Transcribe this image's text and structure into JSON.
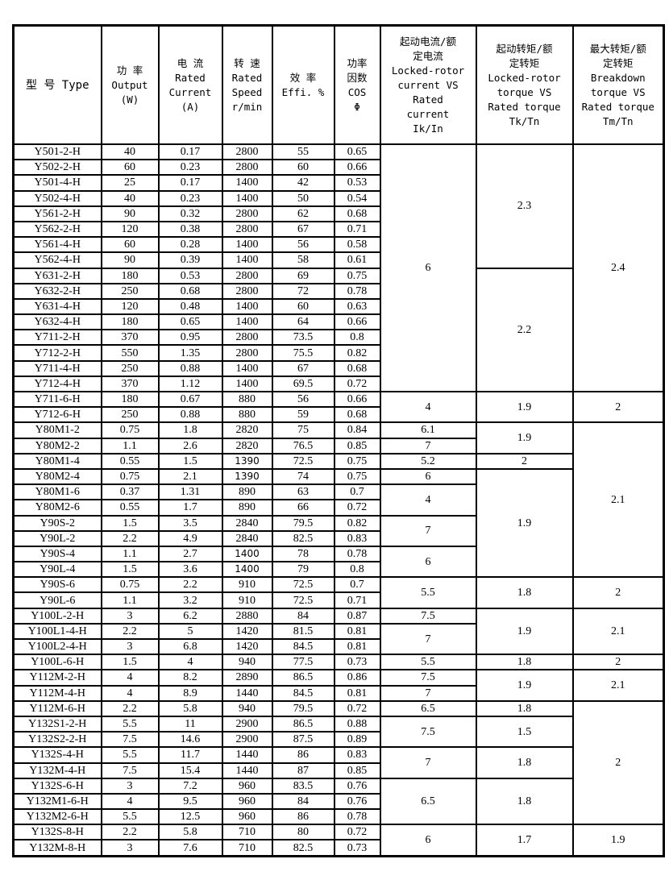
{
  "page": {
    "background_color": "#ffffff",
    "border_color": "#000000"
  },
  "table": {
    "columns": [
      {
        "id": "type",
        "label": "型 号 Type"
      },
      {
        "id": "output",
        "label": "功 率\nOutput\n(W)"
      },
      {
        "id": "current",
        "label": "电 流\nRated\nCurrent\n(A)"
      },
      {
        "id": "speed",
        "label": "转 速\nRated\nSpeed\nr/min"
      },
      {
        "id": "efficiency",
        "label": "效 率\nEffi. %"
      },
      {
        "id": "cos",
        "label": "功率\n因数\nCOS\nΦ"
      },
      {
        "id": "ik_in",
        "label": "起动电流/额\n定电流\nLocked-rotor\ncurrent VS\nRated\ncurrent\nIk/In"
      },
      {
        "id": "tk_tn",
        "label": "起动转矩/额\n定转矩\nLocked-rotor\ntorque VS\nRated torque\nTk/Tn"
      },
      {
        "id": "tm_tn",
        "label": "最大转矩/额\n定转矩\nBreakdown\ntorque VS\nRated torque\nTm/Tn"
      }
    ],
    "rows": [
      {
        "type": "Y501-2-H",
        "output": "40",
        "current": "0.17",
        "speed": "2800",
        "speed_alt_font": false,
        "efficiency": "55",
        "cos": "0.65"
      },
      {
        "type": "Y502-2-H",
        "output": "60",
        "current": "0.23",
        "speed": "2800",
        "speed_alt_font": false,
        "efficiency": "60",
        "cos": "0.66"
      },
      {
        "type": "Y501-4-H",
        "output": "25",
        "current": "0.17",
        "speed": "1400",
        "speed_alt_font": false,
        "efficiency": "42",
        "cos": "0.53"
      },
      {
        "type": "Y502-4-H",
        "output": "40",
        "current": "0.23",
        "speed": "1400",
        "speed_alt_font": false,
        "efficiency": "50",
        "cos": "0.54"
      },
      {
        "type": "Y561-2-H",
        "output": "90",
        "current": "0.32",
        "speed": "2800",
        "speed_alt_font": false,
        "efficiency": "62",
        "cos": "0.68"
      },
      {
        "type": "Y562-2-H",
        "output": "120",
        "current": "0.38",
        "speed": "2800",
        "speed_alt_font": false,
        "efficiency": "67",
        "cos": "0.71"
      },
      {
        "type": "Y561-4-H",
        "output": "60",
        "current": "0.28",
        "speed": "1400",
        "speed_alt_font": false,
        "efficiency": "56",
        "cos": "0.58"
      },
      {
        "type": "Y562-4-H",
        "output": "90",
        "current": "0.39",
        "speed": "1400",
        "speed_alt_font": false,
        "efficiency": "58",
        "cos": "0.61"
      },
      {
        "type": "Y631-2-H",
        "output": "180",
        "current": "0.53",
        "speed": "2800",
        "speed_alt_font": false,
        "efficiency": "69",
        "cos": "0.75"
      },
      {
        "type": "Y632-2-H",
        "output": "250",
        "current": "0.68",
        "speed": "2800",
        "speed_alt_font": false,
        "efficiency": "72",
        "cos": "0.78"
      },
      {
        "type": "Y631-4-H",
        "output": "120",
        "current": "0.48",
        "speed": "1400",
        "speed_alt_font": false,
        "efficiency": "60",
        "cos": "0.63"
      },
      {
        "type": "Y632-4-H",
        "output": "180",
        "current": "0.65",
        "speed": "1400",
        "speed_alt_font": false,
        "efficiency": "64",
        "cos": "0.66"
      },
      {
        "type": "Y711-2-H",
        "output": "370",
        "current": "0.95",
        "speed": "2800",
        "speed_alt_font": false,
        "efficiency": "73.5",
        "cos": "0.8"
      },
      {
        "type": "Y712-2-H",
        "output": "550",
        "current": "1.35",
        "speed": "2800",
        "speed_alt_font": false,
        "efficiency": "75.5",
        "cos": "0.82"
      },
      {
        "type": "Y711-4-H",
        "output": "250",
        "current": "0.88",
        "speed": "1400",
        "speed_alt_font": false,
        "efficiency": "67",
        "cos": "0.68"
      },
      {
        "type": "Y712-4-H",
        "output": "370",
        "current": "1.12",
        "speed": "1400",
        "speed_alt_font": false,
        "efficiency": "69.5",
        "cos": "0.72"
      },
      {
        "type": "Y711-6-H",
        "output": "180",
        "current": "0.67",
        "speed": "880",
        "speed_alt_font": false,
        "efficiency": "56",
        "cos": "0.66"
      },
      {
        "type": "Y712-6-H",
        "output": "250",
        "current": "0.88",
        "speed": "880",
        "speed_alt_font": false,
        "efficiency": "59",
        "cos": "0.68"
      },
      {
        "type": "Y80M1-2",
        "output": "0.75",
        "current": "1.8",
        "speed": "2820",
        "speed_alt_font": false,
        "efficiency": "75",
        "cos": "0.84"
      },
      {
        "type": "Y80M2-2",
        "output": "1.1",
        "current": "2.6",
        "speed": "2820",
        "speed_alt_font": false,
        "efficiency": "76.5",
        "cos": "0.85"
      },
      {
        "type": "Y80M1-4",
        "output": "0.55",
        "current": "1.5",
        "speed": "1390",
        "speed_alt_font": true,
        "efficiency": "72.5",
        "cos": "0.75"
      },
      {
        "type": "Y80M2-4",
        "output": "0.75",
        "current": "2.1",
        "speed": "1390",
        "speed_alt_font": true,
        "efficiency": "74",
        "cos": "0.75"
      },
      {
        "type": "Y80M1-6",
        "output": "0.37",
        "current": "1.31",
        "speed": "890",
        "speed_alt_font": false,
        "efficiency": "63",
        "cos": "0.7"
      },
      {
        "type": "Y80M2-6",
        "output": "0.55",
        "current": "1.7",
        "speed": "890",
        "speed_alt_font": false,
        "efficiency": "66",
        "cos": "0.72"
      },
      {
        "type": "Y90S-2",
        "output": "1.5",
        "current": "3.5",
        "speed": "2840",
        "speed_alt_font": false,
        "efficiency": "79.5",
        "cos": "0.82"
      },
      {
        "type": "Y90L-2",
        "output": "2.2",
        "current": "4.9",
        "speed": "2840",
        "speed_alt_font": false,
        "efficiency": "82.5",
        "cos": "0.83"
      },
      {
        "type": "Y90S-4",
        "output": "1.1",
        "current": "2.7",
        "speed": "1400",
        "speed_alt_font": true,
        "efficiency": "78",
        "cos": "0.78"
      },
      {
        "type": "Y90L-4",
        "output": "1.5",
        "current": "3.6",
        "speed": "1400",
        "speed_alt_font": true,
        "efficiency": "79",
        "cos": "0.8"
      },
      {
        "type": "Y90S-6",
        "output": "0.75",
        "current": "2.2",
        "speed": "910",
        "speed_alt_font": false,
        "efficiency": "72.5",
        "cos": "0.7"
      },
      {
        "type": "Y90L-6",
        "output": "1.1",
        "current": "3.2",
        "speed": "910",
        "speed_alt_font": false,
        "efficiency": "72.5",
        "cos": "0.71"
      },
      {
        "type": "Y100L-2-H",
        "output": "3",
        "current": "6.2",
        "speed": "2880",
        "speed_alt_font": false,
        "efficiency": "84",
        "cos": "0.87"
      },
      {
        "type": "Y100L1-4-H",
        "output": "2.2",
        "current": "5",
        "speed": "1420",
        "speed_alt_font": false,
        "efficiency": "81.5",
        "cos": "0.81"
      },
      {
        "type": "Y100L2-4-H",
        "output": "3",
        "current": "6.8",
        "speed": "1420",
        "speed_alt_font": false,
        "efficiency": "84.5",
        "cos": "0.81"
      },
      {
        "type": "Y100L-6-H",
        "output": "1.5",
        "current": "4",
        "speed": "940",
        "speed_alt_font": false,
        "efficiency": "77.5",
        "cos": "0.73"
      },
      {
        "type": "Y112M-2-H",
        "output": "4",
        "current": "8.2",
        "speed": "2890",
        "speed_alt_font": false,
        "efficiency": "86.5",
        "cos": "0.86"
      },
      {
        "type": "Y112M-4-H",
        "output": "4",
        "current": "8.9",
        "speed": "1440",
        "speed_alt_font": false,
        "efficiency": "84.5",
        "cos": "0.81"
      },
      {
        "type": "Y112M-6-H",
        "output": "2.2",
        "current": "5.8",
        "speed": "940",
        "speed_alt_font": false,
        "efficiency": "79.5",
        "cos": "0.72"
      },
      {
        "type": "Y132S1-2-H",
        "output": "5.5",
        "current": "11",
        "speed": "2900",
        "speed_alt_font": false,
        "efficiency": "86.5",
        "cos": "0.88"
      },
      {
        "type": "Y132S2-2-H",
        "output": "7.5",
        "current": "14.6",
        "speed": "2900",
        "speed_alt_font": false,
        "efficiency": "87.5",
        "cos": "0.89"
      },
      {
        "type": "Y132S-4-H",
        "output": "5.5",
        "current": "11.7",
        "speed": "1440",
        "speed_alt_font": false,
        "efficiency": "86",
        "cos": "0.83"
      },
      {
        "type": "Y132M-4-H",
        "output": "7.5",
        "current": "15.4",
        "speed": "1440",
        "speed_alt_font": false,
        "efficiency": "87",
        "cos": "0.85"
      },
      {
        "type": "Y132S-6-H",
        "output": "3",
        "current": "7.2",
        "speed": "960",
        "speed_alt_font": false,
        "efficiency": "83.5",
        "cos": "0.76"
      },
      {
        "type": "Y132M1-6-H",
        "output": "4",
        "current": "9.5",
        "speed": "960",
        "speed_alt_font": false,
        "efficiency": "84",
        "cos": "0.76"
      },
      {
        "type": "Y132M2-6-H",
        "output": "5.5",
        "current": "12.5",
        "speed": "960",
        "speed_alt_font": false,
        "efficiency": "86",
        "cos": "0.78"
      },
      {
        "type": "Y132S-8-H",
        "output": "2.2",
        "current": "5.8",
        "speed": "710",
        "speed_alt_font": false,
        "efficiency": "80",
        "cos": "0.72"
      },
      {
        "type": "Y132M-8-H",
        "output": "3",
        "current": "7.6",
        "speed": "710",
        "speed_alt_font": false,
        "efficiency": "82.5",
        "cos": "0.73"
      }
    ],
    "ik_in_groups": [
      {
        "span": 16,
        "value": "6"
      },
      {
        "span": 2,
        "value": "4"
      },
      {
        "span": 1,
        "value": "6.1"
      },
      {
        "span": 1,
        "value": "7"
      },
      {
        "span": 1,
        "value": "5.2"
      },
      {
        "span": 1,
        "value": "6"
      },
      {
        "span": 2,
        "value": "4"
      },
      {
        "span": 2,
        "value": "7"
      },
      {
        "span": 2,
        "value": "6"
      },
      {
        "span": 2,
        "value": "5.5"
      },
      {
        "span": 1,
        "value": "7.5"
      },
      {
        "span": 2,
        "value": "7"
      },
      {
        "span": 1,
        "value": "5.5"
      },
      {
        "span": 1,
        "value": "7.5"
      },
      {
        "span": 1,
        "value": "7"
      },
      {
        "span": 1,
        "value": "6.5"
      },
      {
        "span": 2,
        "value": "7.5"
      },
      {
        "span": 2,
        "value": "7"
      },
      {
        "span": 3,
        "value": "6.5"
      },
      {
        "span": 2,
        "value": "6"
      }
    ],
    "tk_tn_groups": [
      {
        "span": 8,
        "value": "2.3"
      },
      {
        "span": 8,
        "value": "2.2"
      },
      {
        "span": 2,
        "value": "1.9"
      },
      {
        "span": 2,
        "value": "1.9"
      },
      {
        "span": 1,
        "value": "2"
      },
      {
        "span": 7,
        "value": "1.9"
      },
      {
        "span": 2,
        "value": "1.8"
      },
      {
        "span": 3,
        "value": "1.9"
      },
      {
        "span": 1,
        "value": "1.8"
      },
      {
        "span": 2,
        "value": "1.9"
      },
      {
        "span": 1,
        "value": "1.8"
      },
      {
        "span": 2,
        "value": "1.5"
      },
      {
        "span": 2,
        "value": "1.8"
      },
      {
        "span": 3,
        "value": "1.8"
      },
      {
        "span": 2,
        "value": "1.7"
      }
    ],
    "tm_tn_groups": [
      {
        "span": 16,
        "value": "2.4"
      },
      {
        "span": 2,
        "value": "2"
      },
      {
        "span": 10,
        "value": "2.1"
      },
      {
        "span": 2,
        "value": "2"
      },
      {
        "span": 3,
        "value": "2.1"
      },
      {
        "span": 1,
        "value": "2"
      },
      {
        "span": 2,
        "value": "2.1"
      },
      {
        "span": 8,
        "value": "2"
      },
      {
        "span": 2,
        "value": "1.9"
      }
    ]
  }
}
